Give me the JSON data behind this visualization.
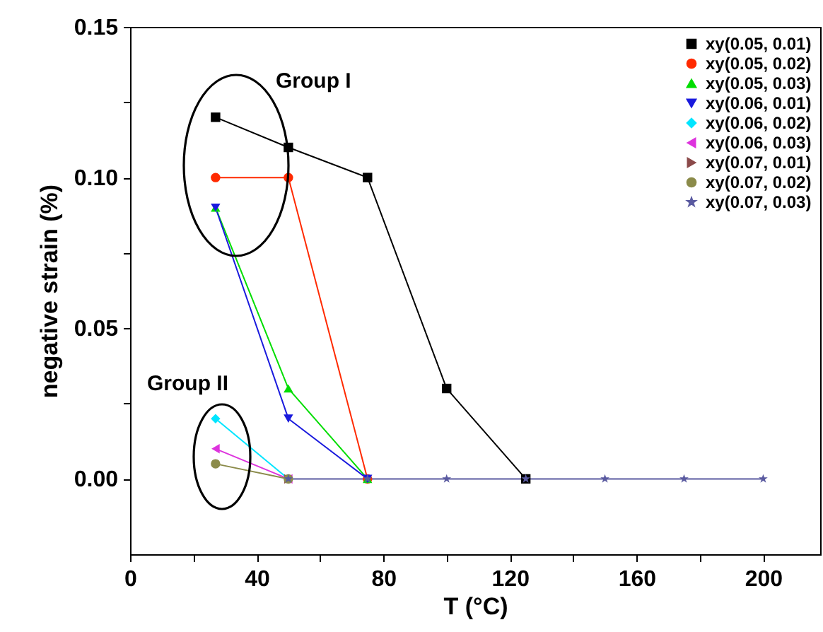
{
  "chart_data": {
    "type": "line",
    "xlabel": "T (°C)",
    "ylabel": "negative strain (%)",
    "x": [
      27,
      50,
      75,
      100,
      125,
      150,
      175,
      200
    ],
    "xlim": [
      0,
      218
    ],
    "xticks": [
      0,
      {
        "value": 20,
        "label": null
      },
      40,
      {
        "value": 60,
        "label": null
      },
      80,
      {
        "value": 100,
        "label": null
      },
      120,
      {
        "value": 140,
        "label": null
      },
      160,
      {
        "value": 180,
        "label": null
      },
      200
    ],
    "ylim": [
      -0.025,
      0.15
    ],
    "yticks": [
      {
        "value": 0,
        "label": "0.00"
      },
      {
        "value": 0.025,
        "label": null
      },
      {
        "value": 0.05,
        "label": "0.05"
      },
      {
        "value": 0.075,
        "label": null
      },
      {
        "value": 0.1,
        "label": "0.10"
      },
      {
        "value": 0.125,
        "label": null
      },
      {
        "value": 0.15,
        "label": "0.15"
      }
    ],
    "legend": "top right",
    "grid": false,
    "line_style": "solid",
    "annotations": [
      "Group I",
      "Group II"
    ],
    "series": [
      {
        "name": "xy(0.05, 0.01)",
        "color": "#000000",
        "marker": "square",
        "values": [
          0.12,
          0.11,
          0.1,
          0.03,
          0,
          null,
          null,
          null
        ]
      },
      {
        "name": "xy(0.05, 0.02)",
        "color": "#ff2a00",
        "marker": "circle",
        "values": [
          0.1,
          0.1,
          0,
          null,
          null,
          null,
          null,
          null
        ]
      },
      {
        "name": "xy(0.05, 0.03)",
        "color": "#00dd00",
        "marker": "triangle-up",
        "values": [
          0.09,
          0.03,
          0,
          null,
          null,
          null,
          null,
          null
        ]
      },
      {
        "name": "xy(0.06, 0.01)",
        "color": "#1a1add",
        "marker": "triangle-down",
        "values": [
          0.09,
          0.02,
          0,
          null,
          null,
          null,
          null,
          null
        ]
      },
      {
        "name": "xy(0.06, 0.02)",
        "color": "#00e5ff",
        "marker": "diamond",
        "values": [
          0.02,
          0,
          null,
          null,
          null,
          null,
          null,
          null
        ]
      },
      {
        "name": "xy(0.06, 0.03)",
        "color": "#dd33dd",
        "marker": "triangle-left",
        "values": [
          0.01,
          0,
          null,
          null,
          null,
          null,
          null,
          null
        ]
      },
      {
        "name": "xy(0.07, 0.01)",
        "color": "#8b4a4a",
        "marker": "triangle-right",
        "values": [
          null,
          0,
          null,
          null,
          null,
          null,
          null,
          null
        ]
      },
      {
        "name": "xy(0.07, 0.02)",
        "color": "#8b8b4a",
        "marker": "circle",
        "values": [
          0.005,
          0,
          null,
          null,
          null,
          null,
          null,
          null
        ]
      },
      {
        "name": "xy(0.07, 0.03)",
        "color": "#5a5aa0",
        "marker": "star",
        "values": [
          null,
          0,
          0,
          0,
          0,
          0,
          0,
          0
        ]
      }
    ]
  }
}
